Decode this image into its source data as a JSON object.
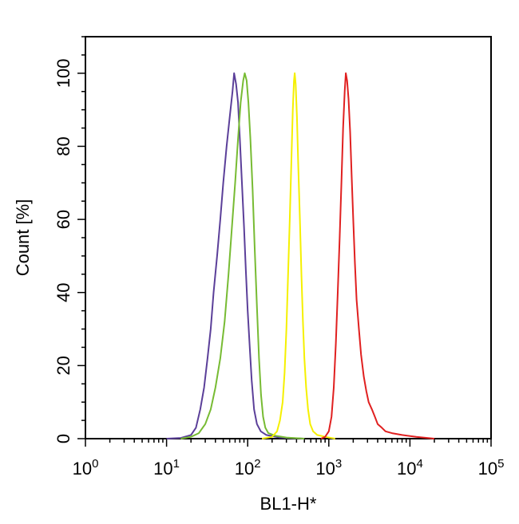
{
  "chart_data": {
    "type": "line",
    "title": "",
    "xlabel": "BL1-H*",
    "ylabel": "Count [%]",
    "x_scale": "log",
    "xlim": [
      1,
      100000
    ],
    "ylim": [
      0,
      110
    ],
    "grid": false,
    "legend": "none",
    "x_ticks": [
      {
        "value": 1,
        "base": "10",
        "exp": "0"
      },
      {
        "value": 10,
        "base": "10",
        "exp": "1"
      },
      {
        "value": 100,
        "base": "10",
        "exp": "2"
      },
      {
        "value": 1000,
        "base": "10",
        "exp": "3"
      },
      {
        "value": 10000,
        "base": "10",
        "exp": "4"
      },
      {
        "value": 100000,
        "base": "10",
        "exp": "5"
      }
    ],
    "y_ticks": [
      {
        "value": 0,
        "label": "0"
      },
      {
        "value": 20,
        "label": "20"
      },
      {
        "value": 40,
        "label": "40"
      },
      {
        "value": 60,
        "label": "60"
      },
      {
        "value": 80,
        "label": "80"
      },
      {
        "value": 100,
        "label": "100"
      }
    ],
    "series": [
      {
        "color": "#5b3f99",
        "points": [
          [
            10,
            0
          ],
          [
            15,
            0.2
          ],
          [
            20,
            1
          ],
          [
            23,
            3
          ],
          [
            26,
            8
          ],
          [
            29,
            14
          ],
          [
            32,
            22
          ],
          [
            35,
            30
          ],
          [
            38,
            40
          ],
          [
            42,
            50
          ],
          [
            46,
            60
          ],
          [
            50,
            70
          ],
          [
            55,
            80
          ],
          [
            60,
            88
          ],
          [
            65,
            95
          ],
          [
            68,
            100
          ],
          [
            72,
            97
          ],
          [
            76,
            92
          ],
          [
            80,
            82
          ],
          [
            85,
            70
          ],
          [
            90,
            58
          ],
          [
            95,
            46
          ],
          [
            100,
            35
          ],
          [
            106,
            25
          ],
          [
            112,
            16
          ],
          [
            120,
            8
          ],
          [
            130,
            4
          ],
          [
            145,
            2
          ],
          [
            170,
            1
          ],
          [
            250,
            0.3
          ],
          [
            500,
            0
          ]
        ]
      },
      {
        "color": "#77bb33",
        "points": [
          [
            15,
            0
          ],
          [
            20,
            0.5
          ],
          [
            25,
            1.5
          ],
          [
            30,
            4
          ],
          [
            35,
            8
          ],
          [
            40,
            14
          ],
          [
            46,
            22
          ],
          [
            52,
            32
          ],
          [
            58,
            45
          ],
          [
            64,
            58
          ],
          [
            70,
            70
          ],
          [
            76,
            82
          ],
          [
            82,
            92
          ],
          [
            88,
            98
          ],
          [
            92,
            100
          ],
          [
            97,
            98
          ],
          [
            102,
            92
          ],
          [
            108,
            82
          ],
          [
            115,
            68
          ],
          [
            122,
            52
          ],
          [
            130,
            36
          ],
          [
            138,
            22
          ],
          [
            146,
            12
          ],
          [
            155,
            6
          ],
          [
            165,
            3
          ],
          [
            180,
            1.5
          ],
          [
            220,
            0.8
          ],
          [
            300,
            0.3
          ],
          [
            500,
            0
          ]
        ]
      },
      {
        "color": "#f5f000",
        "points": [
          [
            150,
            0
          ],
          [
            200,
            0.5
          ],
          [
            230,
            2
          ],
          [
            250,
            5
          ],
          [
            270,
            10
          ],
          [
            285,
            18
          ],
          [
            300,
            30
          ],
          [
            315,
            45
          ],
          [
            330,
            60
          ],
          [
            345,
            75
          ],
          [
            360,
            90
          ],
          [
            372,
            98
          ],
          [
            380,
            100
          ],
          [
            390,
            97
          ],
          [
            405,
            88
          ],
          [
            420,
            75
          ],
          [
            440,
            60
          ],
          [
            460,
            45
          ],
          [
            480,
            32
          ],
          [
            500,
            22
          ],
          [
            525,
            14
          ],
          [
            555,
            8
          ],
          [
            590,
            4
          ],
          [
            640,
            2
          ],
          [
            720,
            1
          ],
          [
            900,
            0.5
          ],
          [
            1200,
            0
          ]
        ]
      },
      {
        "color": "#e02020",
        "points": [
          [
            800,
            0
          ],
          [
            900,
            0.5
          ],
          [
            1000,
            2
          ],
          [
            1080,
            6
          ],
          [
            1150,
            14
          ],
          [
            1220,
            26
          ],
          [
            1290,
            40
          ],
          [
            1360,
            55
          ],
          [
            1430,
            70
          ],
          [
            1500,
            85
          ],
          [
            1570,
            95
          ],
          [
            1620,
            100
          ],
          [
            1680,
            98
          ],
          [
            1750,
            93
          ],
          [
            1830,
            84
          ],
          [
            1910,
            72
          ],
          [
            2000,
            60
          ],
          [
            2100,
            48
          ],
          [
            2200,
            38
          ],
          [
            2350,
            30
          ],
          [
            2500,
            23
          ],
          [
            2700,
            17
          ],
          [
            2900,
            13
          ],
          [
            3100,
            10
          ],
          [
            3400,
            8
          ],
          [
            3700,
            6
          ],
          [
            4000,
            4
          ],
          [
            4500,
            3
          ],
          [
            5000,
            2
          ],
          [
            6000,
            1.5
          ],
          [
            8000,
            1
          ],
          [
            12000,
            0.5
          ],
          [
            20000,
            0
          ]
        ]
      }
    ]
  }
}
